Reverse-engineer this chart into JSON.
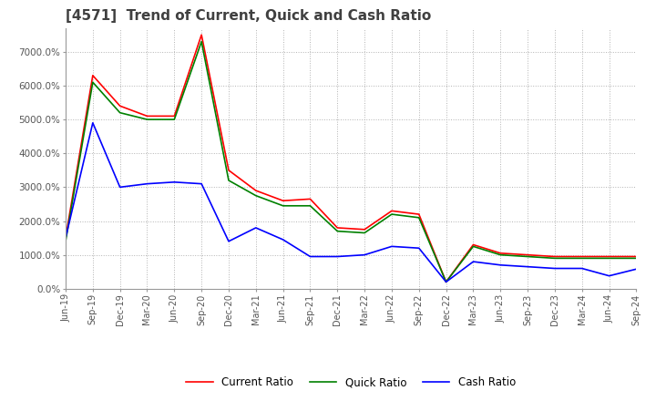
{
  "title": "[4571]  Trend of Current, Quick and Cash Ratio",
  "x_labels": [
    "Jun-19",
    "Sep-19",
    "Dec-19",
    "Mar-20",
    "Jun-20",
    "Sep-20",
    "Dec-20",
    "Mar-21",
    "Jun-21",
    "Sep-21",
    "Dec-21",
    "Mar-22",
    "Jun-22",
    "Sep-22",
    "Dec-22",
    "Mar-23",
    "Jun-23",
    "Sep-23",
    "Dec-23",
    "Mar-24",
    "Jun-24",
    "Sep-24"
  ],
  "current_ratio": [
    1500,
    6300,
    5400,
    5100,
    7500,
    3500,
    2900,
    2600,
    2600,
    1800,
    1700,
    2300,
    200,
    1300,
    1050,
    1000,
    950,
    950,
    950,
    950
  ],
  "quick_ratio": [
    1400,
    6100,
    5200,
    5100,
    7300,
    3200,
    2700,
    2400,
    2400,
    1700,
    1650,
    2200,
    200,
    1250,
    1000,
    950,
    900,
    900,
    900,
    900
  ],
  "cash_ratio": [
    1500,
    4900,
    3000,
    3150,
    3100,
    1400,
    1800,
    1450,
    950,
    950,
    1000,
    1250,
    200,
    800,
    700,
    650,
    600,
    380,
    580
  ],
  "current_ratio_full": [
    1500,
    6300,
    5400,
    5100,
    5100,
    7500,
    3500,
    2900,
    2600,
    2650,
    1800,
    1750,
    2300,
    2200,
    200,
    1300,
    1050,
    1000,
    950,
    950,
    950,
    950
  ],
  "quick_ratio_full": [
    1400,
    6100,
    5200,
    5000,
    5000,
    7300,
    3200,
    2750,
    2450,
    2450,
    1700,
    1650,
    2200,
    2100,
    200,
    1250,
    1000,
    950,
    900,
    900,
    900,
    900
  ],
  "cash_ratio_full": [
    1500,
    4900,
    3000,
    3100,
    3150,
    3100,
    1400,
    1800,
    1450,
    950,
    950,
    1000,
    1250,
    1200,
    200,
    800,
    700,
    650,
    600,
    600,
    380,
    580
  ],
  "current_color": "#ff0000",
  "quick_color": "#008000",
  "cash_color": "#0000ff",
  "ylim": [
    0,
    7700
  ],
  "yticks": [
    0,
    1000,
    2000,
    3000,
    4000,
    5000,
    6000,
    7000
  ],
  "ytick_labels": [
    "0.0%",
    "1000.0%",
    "2000.0%",
    "3000.0%",
    "4000.0%",
    "5000.0%",
    "6000.0%",
    "7000.0%"
  ],
  "grid_color": "#aaaaaa",
  "bg_color": "#ffffff",
  "title_color": "#404040",
  "title_fontsize": 11,
  "legend_labels": [
    "Current Ratio",
    "Quick Ratio",
    "Cash Ratio"
  ]
}
